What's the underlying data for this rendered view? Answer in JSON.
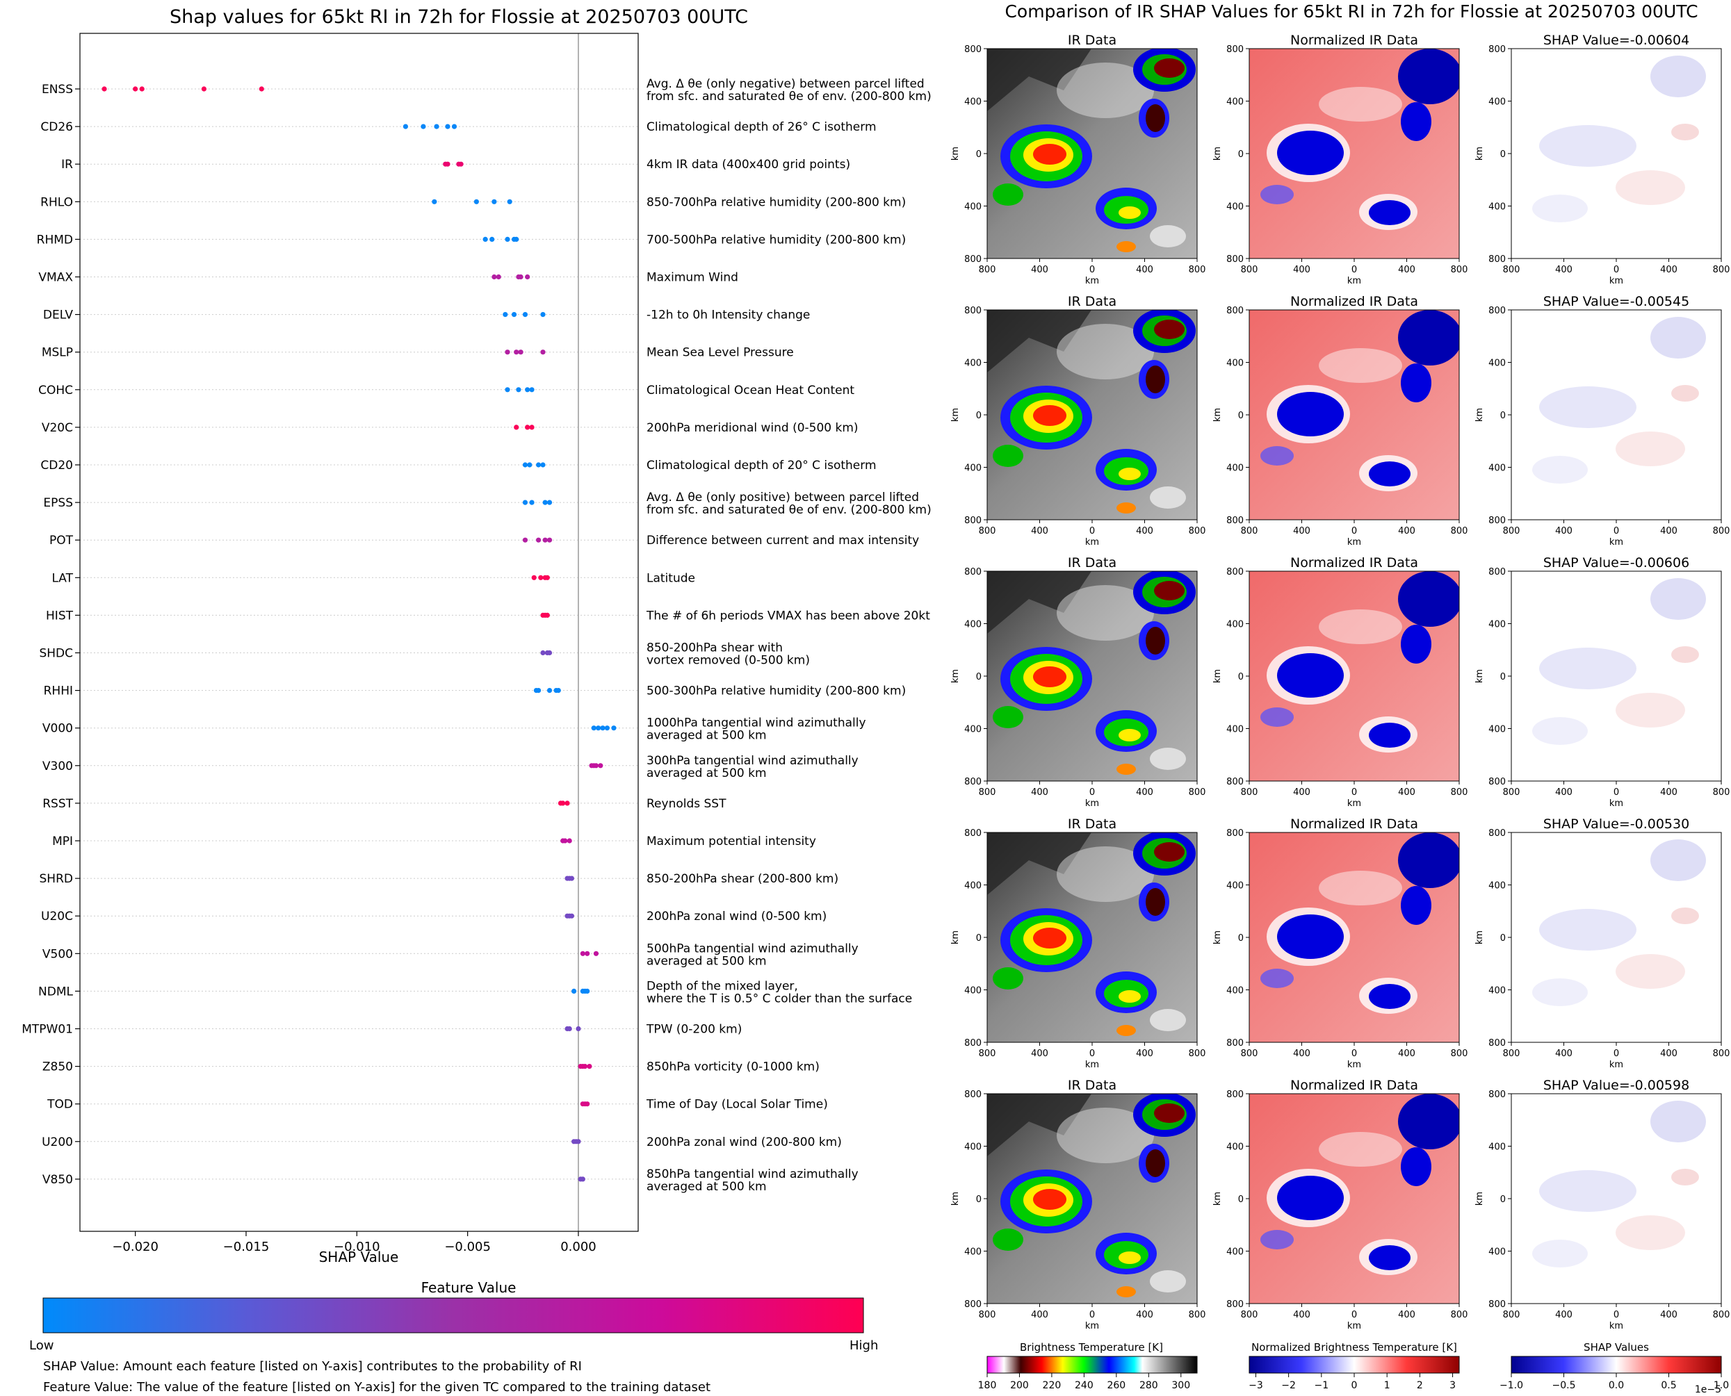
{
  "chart_data": [
    {
      "type": "scatter",
      "title": "Shap values for 65kt RI in 72h for Flossie at 20250703 00UTC",
      "xlabel": "SHAP Value",
      "ylabel": "",
      "xlim": [
        -0.0225,
        0.0027
      ],
      "xticks": [
        -0.02,
        -0.015,
        -0.01,
        -0.005,
        0.0
      ],
      "xtick_labels": [
        "−0.020",
        "−0.015",
        "−0.010",
        "−0.005",
        "0.000"
      ],
      "grid": "horizontal dotted",
      "zero_line": 0.0,
      "features": [
        {
          "code": "ENSS",
          "desc": [
            "Avg. Δ θe (only negative) between parcel lifted",
            "from sfc. and saturated θe of env. (200-800 km)"
          ],
          "values": [
            -0.0214,
            -0.02,
            -0.0197,
            -0.0169,
            -0.0143
          ],
          "color_value": 0.98
        },
        {
          "code": "CD26",
          "desc": [
            "Climatological depth of 26° C isotherm"
          ],
          "values": [
            -0.0078,
            -0.007,
            -0.0064,
            -0.0059,
            -0.0056
          ],
          "color_value": 0.02
        },
        {
          "code": "IR",
          "desc": [
            "4km IR data (400x400 grid points)"
          ],
          "values": [
            -0.006,
            -0.0059,
            -0.0054,
            -0.0053
          ],
          "color_value": 0.9
        },
        {
          "code": "RHLO",
          "desc": [
            "850-700hPa relative humidity (200-800 km)"
          ],
          "values": [
            -0.0065,
            -0.0046,
            -0.0038,
            -0.0031
          ],
          "color_value": 0.02
        },
        {
          "code": "RHMD",
          "desc": [
            "700-500hPa relative humidity (200-800 km)"
          ],
          "values": [
            -0.0042,
            -0.0039,
            -0.0032,
            -0.0029,
            -0.0028
          ],
          "color_value": 0.02
        },
        {
          "code": "VMAX",
          "desc": [
            "Maximum Wind"
          ],
          "values": [
            -0.0038,
            -0.0036,
            -0.0027,
            -0.0026,
            -0.0023
          ],
          "color_value": 0.62
        },
        {
          "code": "DELV",
          "desc": [
            "-12h to 0h Intensity change"
          ],
          "values": [
            -0.0033,
            -0.0029,
            -0.0024,
            -0.0016
          ],
          "color_value": 0.02
        },
        {
          "code": "MSLP",
          "desc": [
            "Mean Sea Level Pressure"
          ],
          "values": [
            -0.0032,
            -0.0028,
            -0.0026,
            -0.0016
          ],
          "color_value": 0.62
        },
        {
          "code": "COHC",
          "desc": [
            "Climatological Ocean Heat Content"
          ],
          "values": [
            -0.0032,
            -0.0027,
            -0.0023,
            -0.0021
          ],
          "color_value": 0.02
        },
        {
          "code": "V20C",
          "desc": [
            "200hPa meridional wind (0-500 km)"
          ],
          "values": [
            -0.0028,
            -0.0023,
            -0.0021
          ],
          "color_value": 0.98
        },
        {
          "code": "CD20",
          "desc": [
            "Climatological depth of 20° C isotherm"
          ],
          "values": [
            -0.0024,
            -0.0022,
            -0.0018,
            -0.0016
          ],
          "color_value": 0.02
        },
        {
          "code": "EPSS",
          "desc": [
            "Avg. Δ θe (only positive) between parcel lifted",
            "from sfc. and saturated θe of env. (200-800 km)"
          ],
          "values": [
            -0.0024,
            -0.0021,
            -0.0015,
            -0.0013
          ],
          "color_value": 0.02
        },
        {
          "code": "POT",
          "desc": [
            "Difference between current and max intensity"
          ],
          "values": [
            -0.0024,
            -0.0018,
            -0.0015,
            -0.0013
          ],
          "color_value": 0.62
        },
        {
          "code": "LAT",
          "desc": [
            "Latitude"
          ],
          "values": [
            -0.002,
            -0.0017,
            -0.0015,
            -0.0014
          ],
          "color_value": 0.98
        },
        {
          "code": "HIST",
          "desc": [
            "The # of 6h periods VMAX has been above 20kt"
          ],
          "values": [
            -0.0016,
            -0.0015,
            -0.0014
          ],
          "color_value": 0.98
        },
        {
          "code": "SHDC",
          "desc": [
            "850-200hPa shear with",
            "vortex removed (0-500 km)"
          ],
          "values": [
            -0.0016,
            -0.0014,
            -0.0013
          ],
          "color_value": 0.35
        },
        {
          "code": "RHHI",
          "desc": [
            "500-300hPa relative humidity (200-800 km)"
          ],
          "values": [
            -0.0019,
            -0.0018,
            -0.0013,
            -0.001,
            -0.0009
          ],
          "color_value": 0.02
        },
        {
          "code": "V000",
          "desc": [
            "1000hPa tangential wind azimuthally",
            "averaged at 500 km"
          ],
          "values": [
            0.0007,
            0.0009,
            0.0011,
            0.0013,
            0.0016
          ],
          "color_value": 0.02
        },
        {
          "code": "V300",
          "desc": [
            "300hPa tangential wind azimuthally",
            "averaged at 500 km"
          ],
          "values": [
            0.0006,
            0.0007,
            0.0008,
            0.001
          ],
          "color_value": 0.7
        },
        {
          "code": "RSST",
          "desc": [
            "Reynolds SST"
          ],
          "values": [
            -0.0008,
            -0.0007,
            -0.0005
          ],
          "color_value": 0.98
        },
        {
          "code": "MPI",
          "desc": [
            "Maximum potential intensity"
          ],
          "values": [
            -0.0007,
            -0.0006,
            -0.0004
          ],
          "color_value": 0.7
        },
        {
          "code": "SHRD",
          "desc": [
            "850-200hPa shear (200-800 km)"
          ],
          "values": [
            -0.0005,
            -0.0004,
            -0.0003
          ],
          "color_value": 0.35
        },
        {
          "code": "U20C",
          "desc": [
            "200hPa zonal wind (0-500 km)"
          ],
          "values": [
            -0.0005,
            -0.0004,
            -0.0003
          ],
          "color_value": 0.35
        },
        {
          "code": "V500",
          "desc": [
            "500hPa tangential wind azimuthally",
            "averaged at 500 km"
          ],
          "values": [
            0.0002,
            0.0004,
            0.0008
          ],
          "color_value": 0.7
        },
        {
          "code": "NDML",
          "desc": [
            "Depth of the mixed layer,",
            "where the T is 0.5° C colder than the surface"
          ],
          "values": [
            -0.0002,
            0.0002,
            0.0003,
            0.0004
          ],
          "color_value": 0.02
        },
        {
          "code": "MTPW01",
          "desc": [
            "TPW (0-200 km)"
          ],
          "values": [
            -0.0005,
            -0.0004,
            0.0
          ],
          "color_value": 0.35
        },
        {
          "code": "Z850",
          "desc": [
            "850hPa vorticity (0-1000 km)"
          ],
          "values": [
            0.0001,
            0.0002,
            0.0003,
            0.0005
          ],
          "color_value": 0.82
        },
        {
          "code": "TOD",
          "desc": [
            "Time of Day (Local Solar Time)"
          ],
          "values": [
            0.0002,
            0.0003,
            0.0004
          ],
          "color_value": 0.82
        },
        {
          "code": "U200",
          "desc": [
            "200hPa zonal wind (200-800 km)"
          ],
          "values": [
            -0.0002,
            -0.0001,
            0.0
          ],
          "color_value": 0.35
        },
        {
          "code": "V850",
          "desc": [
            "850hPa tangential wind azimuthally",
            "averaged at 500 km"
          ],
          "values": [
            0.0001,
            0.0002
          ],
          "color_value": 0.35
        }
      ],
      "colorbar": {
        "label": "Feature Value",
        "low_label": "Low",
        "high_label": "High",
        "colors": [
          "#008bfb",
          "#5a5ad6",
          "#9b31a8",
          "#cc0b9b",
          "#ff0052"
        ]
      },
      "notes": [
        "SHAP Value: Amount each feature [listed on Y-axis] contributes to the probability of RI",
        "Feature Value: The value of the feature [listed on Y-axis] for the given TC compared to the training dataset"
      ]
    },
    {
      "type": "heatmap",
      "title": "Comparison of IR SHAP Values for 65kt RI in 72h for Flossie at 20250703 00UTC",
      "xlabel": "km",
      "ylabel": "km",
      "axis_ticks": [
        800,
        400,
        0,
        400,
        800
      ],
      "xlim": [
        -800,
        800
      ],
      "ylim": [
        -800,
        800
      ],
      "column_titles": [
        "IR Data",
        "Normalized IR Data"
      ],
      "shap_titles": [
        "SHAP Value=-0.00604",
        "SHAP Value=-0.00545",
        "SHAP Value=-0.00606",
        "SHAP Value=-0.00530",
        "SHAP Value=-0.00598"
      ],
      "colorbars": [
        {
          "label": "Brightness Temperature [K]",
          "ticks": [
            "180",
            "200",
            "220",
            "240",
            "260",
            "280",
            "300"
          ],
          "range": [
            180,
            310
          ]
        },
        {
          "label": "Normalized Brightness Temperature [K]",
          "ticks": [
            "−3",
            "−2",
            "−1",
            "0",
            "1",
            "2",
            "3"
          ],
          "range": [
            -3.2,
            3.2
          ]
        },
        {
          "label": "SHAP Values",
          "ticks": [
            "−1.0",
            "−0.5",
            "0.0",
            "0.5",
            "1.0"
          ],
          "range": [
            -1.0,
            1.0
          ],
          "offset": "1e−5"
        }
      ]
    }
  ]
}
